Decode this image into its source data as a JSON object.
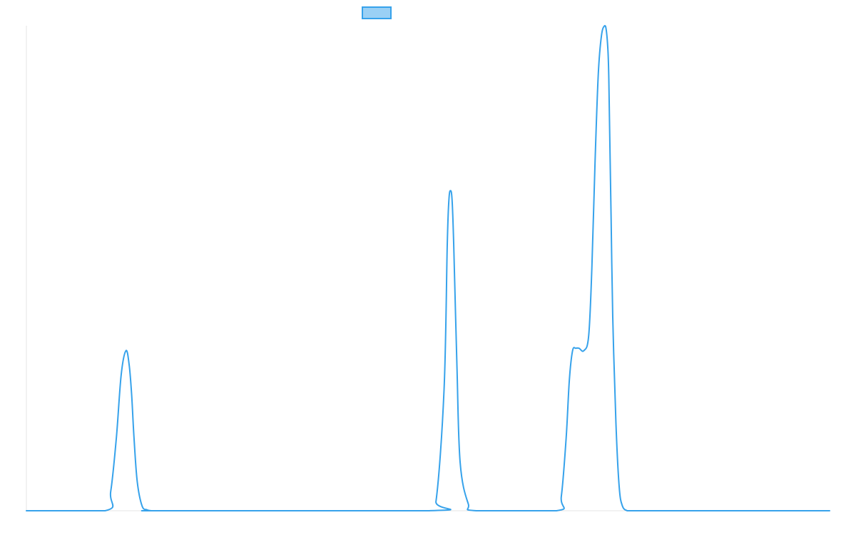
{
  "chart_data": {
    "type": "line",
    "title": "",
    "xlabel": "",
    "ylabel": "",
    "grid": false,
    "legend": {
      "placement": "top-center",
      "show_label": false
    },
    "xlim": [
      0,
      1000
    ],
    "ylim": [
      0,
      1.0
    ],
    "x": [
      0,
      98,
      105,
      112,
      118,
      124,
      128,
      131,
      134,
      138,
      144,
      150,
      156,
      162,
      172,
      500,
      510,
      520,
      524,
      526,
      528,
      530,
      532,
      536,
      540,
      550,
      560,
      660,
      666,
      672,
      676,
      680,
      684,
      688,
      694,
      700,
      704,
      708,
      712,
      716,
      720,
      722,
      724,
      725,
      726,
      728,
      730,
      734,
      738,
      742,
      748,
      752,
      760,
      775,
      1000
    ],
    "series": [
      {
        "name": "",
        "color": "#36A2EB",
        "fill": "#9AD0F5",
        "values": [
          0,
          0,
          0.04,
          0.15,
          0.28,
          0.33,
          0.3,
          0.24,
          0.15,
          0.06,
          0.01,
          0.002,
          0,
          0,
          0,
          0,
          0.02,
          0.25,
          0.55,
          0.64,
          0.66,
          0.64,
          0.55,
          0.3,
          0.1,
          0.015,
          0,
          0,
          0.03,
          0.15,
          0.27,
          0.33,
          0.335,
          0.335,
          0.33,
          0.36,
          0.5,
          0.72,
          0.9,
          0.98,
          1.0,
          0.99,
          0.95,
          0.9,
          0.8,
          0.6,
          0.4,
          0.18,
          0.05,
          0.01,
          0,
          0,
          0,
          0,
          0
        ]
      }
    ]
  }
}
